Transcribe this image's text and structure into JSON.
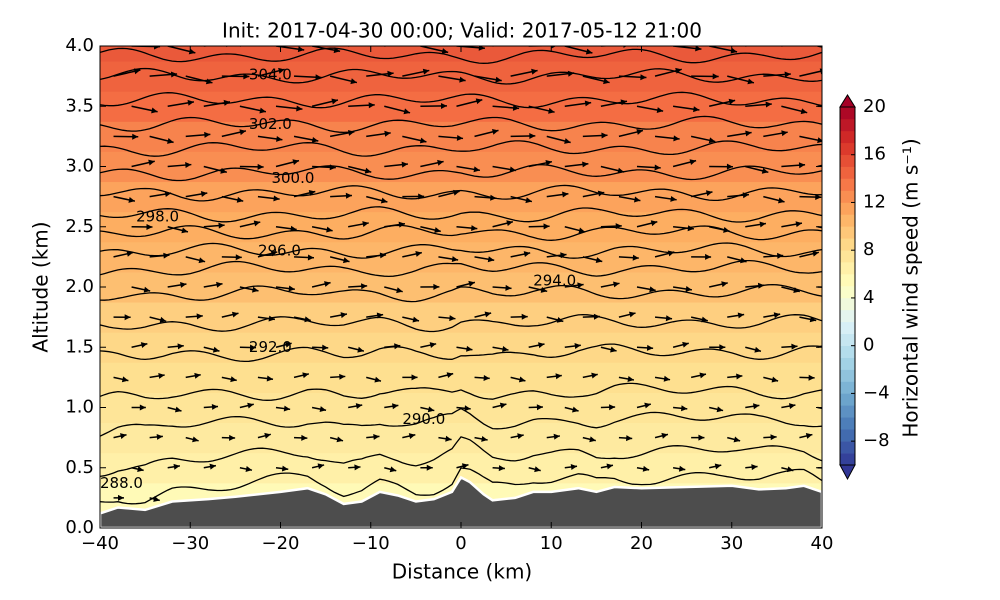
{
  "chart_data": {
    "type": "cross-section",
    "title": "Init: 2017-04-30 00:00; Valid: 2017-05-12 21:00",
    "xlabel": "Distance (km)",
    "ylabel": "Altitude (km)",
    "xlim": [
      -40,
      40
    ],
    "xticks": [
      {
        "value": -40,
        "label": "−40"
      },
      {
        "value": -30,
        "label": "−30"
      },
      {
        "value": -20,
        "label": "−20"
      },
      {
        "value": -10,
        "label": "−10"
      },
      0,
      10,
      20,
      30,
      40
    ],
    "ylim": [
      0,
      4
    ],
    "yticks": [
      {
        "value": 0,
        "label": "0.0"
      },
      0.5,
      {
        "value": 1,
        "label": "1.0"
      },
      1.5,
      {
        "value": 2,
        "label": "2.0"
      },
      2.5,
      {
        "value": 3,
        "label": "3.0"
      },
      3.5,
      {
        "value": 4,
        "label": "4.0"
      }
    ],
    "colorbar": {
      "label": "Horizontal wind speed (m s⁻¹)",
      "lim": [
        -10,
        20
      ],
      "ticks": [
        {
          "value": -8,
          "label": "−8"
        },
        {
          "value": -4,
          "label": "−4"
        },
        0,
        4,
        8,
        12,
        16,
        20
      ],
      "colormap": [
        "#313695",
        "#4575b4",
        "#74add1",
        "#abd9e9",
        "#e0f3f8",
        "#ffffbf",
        "#fee090",
        "#fdae61",
        "#f46d43",
        "#d73027",
        "#a50026"
      ]
    },
    "terrain": {
      "color": "#4d4d4d",
      "x": [
        -40,
        -38,
        -35,
        -32,
        -28,
        -25,
        -20,
        -17,
        -15,
        -13,
        -11,
        -9,
        -7,
        -5,
        -3,
        -1,
        0,
        1,
        2.5,
        3.5,
        6,
        8,
        10,
        13,
        15,
        17,
        20,
        25,
        30,
        33,
        36,
        38,
        40
      ],
      "y": [
        0.12,
        0.17,
        0.15,
        0.22,
        0.24,
        0.26,
        0.3,
        0.33,
        0.28,
        0.2,
        0.22,
        0.3,
        0.27,
        0.22,
        0.24,
        0.3,
        0.42,
        0.38,
        0.28,
        0.23,
        0.25,
        0.3,
        0.3,
        0.33,
        0.3,
        0.34,
        0.33,
        0.34,
        0.35,
        0.32,
        0.33,
        0.35,
        0.3
      ]
    },
    "wind_profile": {
      "altitude": [
        0.25,
        0.5,
        0.75,
        1,
        1.25,
        1.5,
        1.75,
        2,
        2.25,
        2.5,
        2.75,
        3,
        3.25,
        3.5,
        3.75,
        4
      ],
      "values": [
        5.5,
        6.5,
        7,
        7.5,
        8,
        8.5,
        9,
        10,
        10.5,
        11,
        11.5,
        12.5,
        13,
        14,
        14.5,
        15
      ]
    },
    "isentropes": {
      "levels": [
        288,
        289,
        290,
        291,
        292,
        293,
        294,
        295,
        296,
        297,
        298,
        299,
        300,
        301,
        302,
        303,
        304,
        305
      ],
      "heights": [
        0.37,
        0.6,
        0.88,
        1.12,
        1.45,
        1.7,
        1.95,
        2.15,
        2.3,
        2.45,
        2.6,
        2.78,
        2.95,
        3.15,
        3.35,
        3.55,
        3.75,
        3.92
      ]
    },
    "contour_labels": [
      {
        "value": 288,
        "label": "288.0",
        "x": -40,
        "y": 0.37
      },
      {
        "value": 290,
        "label": "290.0",
        "x": -6.5,
        "y": 0.9
      },
      {
        "value": 292,
        "label": "292.0",
        "x": -23.5,
        "y": 1.5
      },
      {
        "value": 294,
        "label": "294.0",
        "x": 8,
        "y": 2.05
      },
      {
        "value": 296,
        "label": "296.0",
        "x": -22.5,
        "y": 2.3
      },
      {
        "value": 298,
        "label": "298.0",
        "x": -36,
        "y": 2.58
      },
      {
        "value": 300,
        "label": "300.0",
        "x": -21,
        "y": 2.9
      },
      {
        "value": 302,
        "label": "302.0",
        "x": -23.5,
        "y": 3.35
      },
      {
        "value": 304,
        "label": "304.0",
        "x": -23.5,
        "y": 3.76
      }
    ]
  }
}
